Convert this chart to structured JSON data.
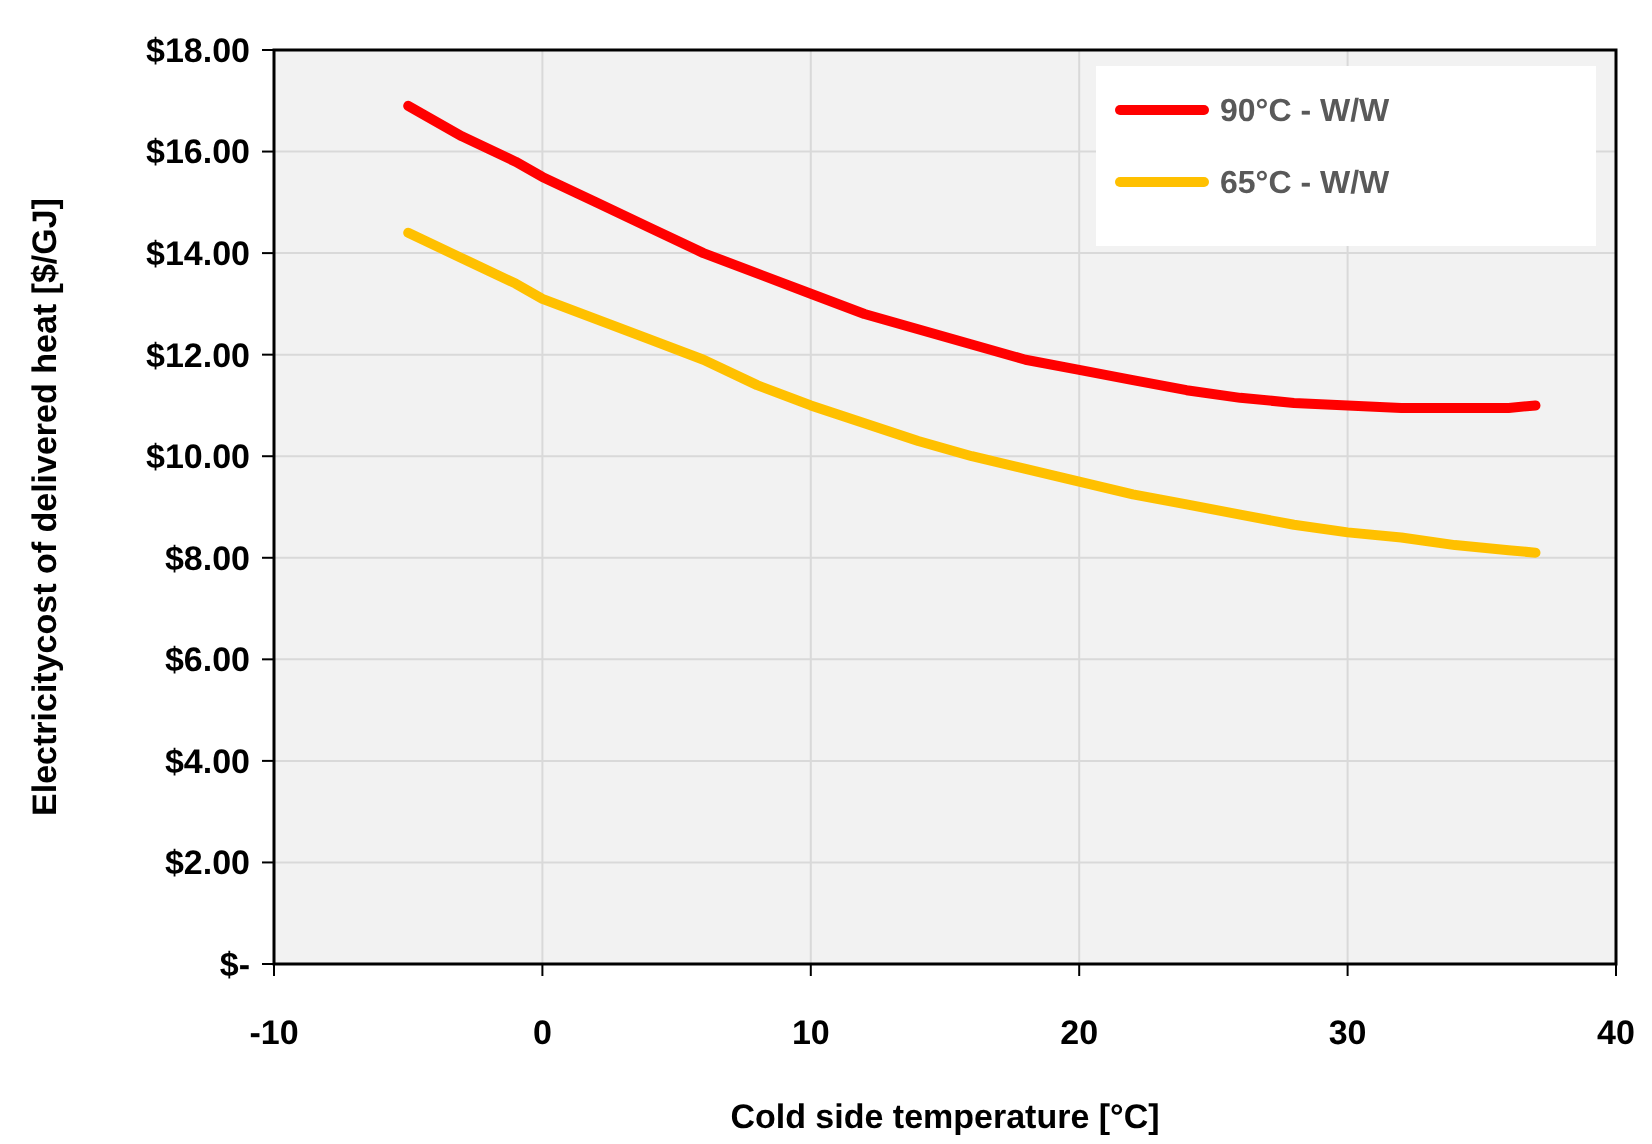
{
  "chart_data": {
    "type": "line",
    "xlabel": "Cold side temperature [°C]",
    "ylabel": "Electricitycost of delivered heat [$/GJ]",
    "xlim": [
      -10,
      40
    ],
    "xticks": [
      -10,
      0,
      10,
      20,
      30,
      40
    ],
    "ylim": [
      0,
      18
    ],
    "yticks": [
      {
        "value": 0,
        "label": "$-"
      },
      {
        "value": 2,
        "label": "$2.00"
      },
      {
        "value": 4,
        "label": "$4.00"
      },
      {
        "value": 6,
        "label": "$6.00"
      },
      {
        "value": 8,
        "label": "$8.00"
      },
      {
        "value": 10,
        "label": "$10.00"
      },
      {
        "value": 12,
        "label": "$12.00"
      },
      {
        "value": 14,
        "label": "$14.00"
      },
      {
        "value": 16,
        "label": "$16.00"
      },
      {
        "value": 18,
        "label": "$18.00"
      }
    ],
    "grid": true,
    "legend": "top right",
    "marker": "none",
    "line_style": "solid",
    "x": [
      -5,
      -3,
      -1,
      0,
      2,
      4,
      6,
      8,
      10,
      12,
      14,
      16,
      18,
      20,
      22,
      24,
      26,
      28,
      30,
      32,
      34,
      36,
      37
    ],
    "series": [
      {
        "name": "90°C - W/W",
        "color": "#ff0000",
        "values": [
          16.9,
          16.3,
          15.8,
          15.5,
          15.0,
          14.5,
          14.0,
          13.6,
          13.2,
          12.8,
          12.5,
          12.2,
          11.9,
          11.7,
          11.5,
          11.3,
          11.15,
          11.05,
          11.0,
          10.95,
          10.95,
          10.95,
          11.0
        ]
      },
      {
        "name": "65°C - W/W",
        "color": "#ffc000",
        "values": [
          14.4,
          13.9,
          13.4,
          13.1,
          12.7,
          12.3,
          11.9,
          11.4,
          11.0,
          10.65,
          10.3,
          10.0,
          9.75,
          9.5,
          9.25,
          9.05,
          8.85,
          8.65,
          8.5,
          8.4,
          8.25,
          8.15,
          8.1
        ]
      }
    ]
  }
}
